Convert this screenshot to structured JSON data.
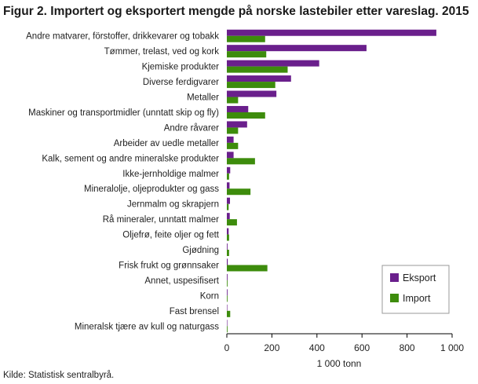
{
  "chart_data": {
    "type": "bar",
    "orientation": "horizontal",
    "title": "Figur 2. Importert og eksportert mengde på norske lastebiler etter vareslag. 2015",
    "xlabel": "1 000 tonn",
    "ylabel": "",
    "xlim": [
      0,
      1000
    ],
    "xticks": [
      0,
      200,
      400,
      600,
      800,
      1000
    ],
    "xtick_labels": [
      "0",
      "200",
      "400",
      "600",
      "800",
      "1 000"
    ],
    "grid": false,
    "legend_position": "bottom-right",
    "categories": [
      "Andre matvarer, förstoffer, drikkevarer og tobakk",
      "Tømmer, trelast, ved og kork",
      "Kjemiske produkter",
      "Diverse ferdigvarer",
      "Metaller",
      "Maskiner og transportmidler (unntatt skip og fly)",
      "Andre råvarer",
      "Arbeider av uedle metaller",
      "Kalk, sement og andre mineralske produkter",
      "Ikke-jernholdige malmer",
      "Mineralolje, oljeprodukter og gass",
      "Jernmalm og skrapjern",
      "Rå mineraler, unntatt malmer",
      "Oljefrø, feite oljer og fett",
      "Gjødning",
      "Frisk frukt og grønnsaker",
      "Annet, uspesifisert",
      "Korn",
      "Fast brensel",
      "Mineralsk tjære av kull og naturgass"
    ],
    "series": [
      {
        "name": "Eksport",
        "color": "#6a1f8c",
        "values": [
          930,
          620,
          410,
          285,
          220,
          95,
          90,
          30,
          30,
          15,
          12,
          14,
          13,
          8,
          3,
          4,
          3,
          3,
          2,
          2
        ]
      },
      {
        "name": "Import",
        "color": "#3d8c0c",
        "values": [
          170,
          175,
          270,
          215,
          50,
          170,
          50,
          50,
          125,
          10,
          105,
          8,
          45,
          10,
          10,
          180,
          3,
          3,
          15,
          3
        ]
      }
    ]
  },
  "source": "Kilde: Statistisk sentralbyrå."
}
